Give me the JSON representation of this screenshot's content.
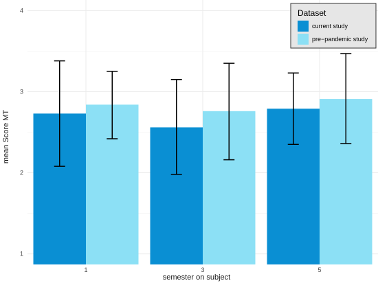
{
  "chart_data": {
    "type": "bar",
    "title": "",
    "xlabel": "semester on subject",
    "ylabel": "mean Score MT",
    "categories": [
      "1",
      "3",
      "5"
    ],
    "ylim": [
      0.87,
      4.13
    ],
    "yticks": [
      1,
      2,
      3,
      4
    ],
    "grid": true,
    "legend": {
      "title": "Dataset",
      "placement": "top-right"
    },
    "series": [
      {
        "name": "current study",
        "color": "#0a8fd3",
        "values": [
          2.73,
          2.56,
          2.79
        ],
        "error_low": [
          2.08,
          1.98,
          2.35
        ],
        "error_high": [
          3.38,
          3.15,
          3.23
        ]
      },
      {
        "name": "pre−pandemic study",
        "color": "#8ce0f5",
        "values": [
          2.84,
          2.76,
          2.91
        ],
        "error_low": [
          2.42,
          2.16,
          2.36
        ],
        "error_high": [
          3.25,
          3.35,
          3.47
        ]
      }
    ]
  }
}
